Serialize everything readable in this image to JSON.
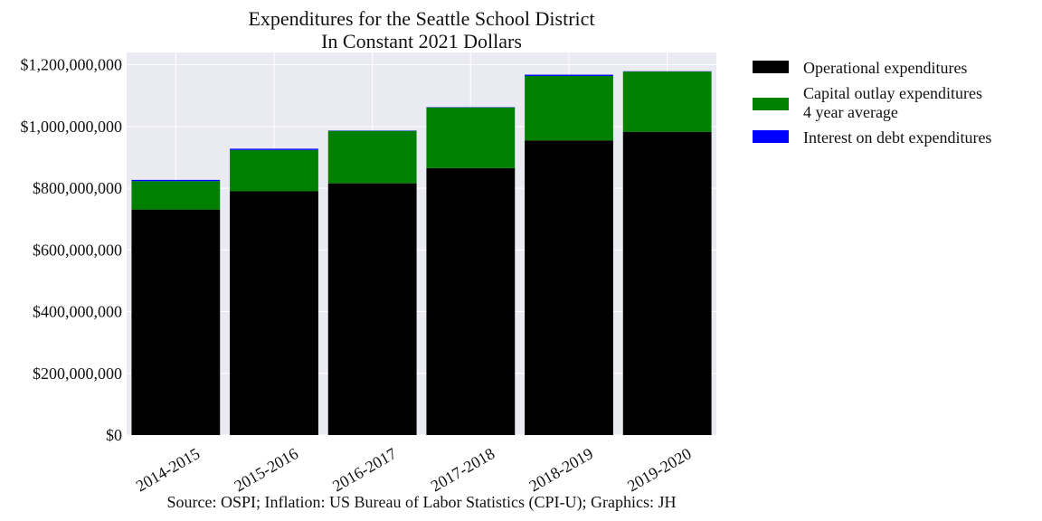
{
  "chart_data": {
    "type": "bar",
    "stacked": true,
    "title": "Expenditures for the Seattle School District",
    "subtitle": "In Constant 2021 Dollars",
    "categories": [
      "2014-2015",
      "2015-2016",
      "2016-2017",
      "2017-2018",
      "2018-2019",
      "2019-2020"
    ],
    "series": [
      {
        "name": "Operational expenditures",
        "color": "#000000",
        "values": [
          731000000,
          790000000,
          816000000,
          865000000,
          955000000,
          983000000
        ]
      },
      {
        "name": "Capital outlay expenditures",
        "name_line2": "4 year average",
        "color": "#008000",
        "values": [
          92000000,
          134000000,
          170000000,
          197000000,
          209000000,
          195000000
        ]
      },
      {
        "name": "Interest on debt expenditures",
        "color": "#0000ff",
        "values": [
          4000000,
          4000000,
          1000000,
          1000000,
          4000000,
          1000000
        ]
      }
    ],
    "ylim": [
      0,
      1240000000
    ],
    "yticks": [
      0,
      200000000,
      400000000,
      600000000,
      800000000,
      1000000000,
      1200000000
    ],
    "ytick_labels": [
      "$0",
      "$200,000,000",
      "$400,000,000",
      "$600,000,000",
      "$800,000,000",
      "$1,000,000,000",
      "$1,200,000,000"
    ],
    "xlabel": "",
    "ylabel": "",
    "grid": true,
    "legend_position": "outside-right",
    "plot_background": "#eaeaf2",
    "source": "Source: OSPI; Inflation: US Bureau of Labor Statistics (CPI-U); Graphics: JH"
  }
}
